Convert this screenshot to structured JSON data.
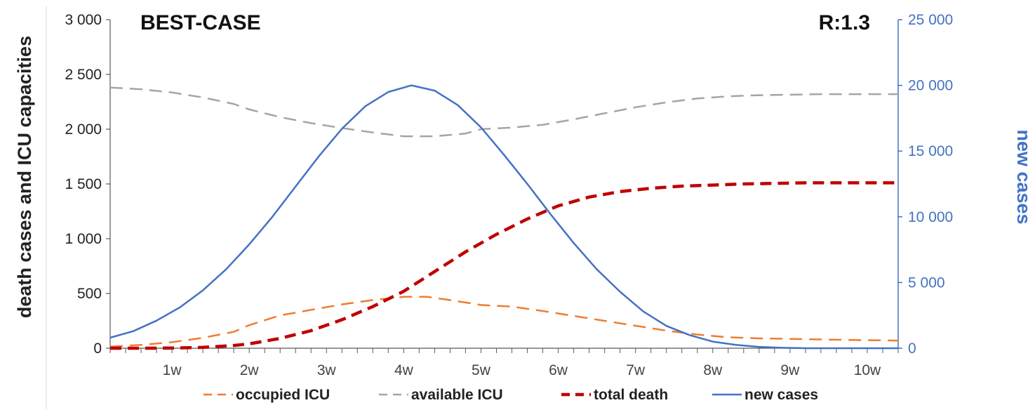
{
  "chart_data": {
    "type": "line",
    "title": "BEST-CASE",
    "annotation": "R:1.3",
    "ylabel": "death cases and ICU capacities",
    "y2label": "new cases",
    "ylim": [
      0,
      3000
    ],
    "y2lim": [
      0,
      25000
    ],
    "yticks": [
      "0",
      "500",
      "1 000",
      "1 500",
      "2 000",
      "2 500",
      "3 000"
    ],
    "y2ticks": [
      "0",
      "5 000",
      "10 000",
      "15 000",
      "20 000",
      "25 000"
    ],
    "xlim": [
      0.2,
      10.4
    ],
    "xticks": [
      {
        "value": 1,
        "label": "1w"
      },
      {
        "value": 2,
        "label": "2w"
      },
      {
        "value": 3,
        "label": "3w"
      },
      {
        "value": 4,
        "label": "4w"
      },
      {
        "value": 5,
        "label": "5w"
      },
      {
        "value": 6,
        "label": "6w"
      },
      {
        "value": 7,
        "label": "7w"
      },
      {
        "value": 8,
        "label": "8w"
      },
      {
        "value": 9,
        "label": "9w"
      },
      {
        "value": 10,
        "label": "10w"
      }
    ],
    "grid": false,
    "legend_position": "bottom",
    "series": [
      {
        "name": "occupied ICU",
        "axis": "left",
        "color": "#ED7D31",
        "style": "dash",
        "x": [
          0.2,
          0.6,
          1.0,
          1.4,
          1.8,
          2.0,
          2.4,
          2.8,
          3.2,
          3.6,
          4.0,
          4.3,
          4.6,
          5.0,
          5.4,
          5.8,
          6.2,
          6.6,
          7.0,
          7.4,
          7.8,
          8.2,
          8.6,
          9.0,
          9.4,
          9.8,
          10.4
        ],
        "y": [
          15,
          30,
          55,
          95,
          150,
          210,
          300,
          350,
          400,
          440,
          470,
          470,
          440,
          395,
          380,
          340,
          295,
          250,
          205,
          160,
          125,
          100,
          90,
          85,
          80,
          75,
          70
        ]
      },
      {
        "name": "available ICU",
        "axis": "left",
        "color": "#A5A5A5",
        "style": "dash",
        "x": [
          0.2,
          0.6,
          1.0,
          1.4,
          1.8,
          2.0,
          2.4,
          2.8,
          3.2,
          3.6,
          4.0,
          4.4,
          4.8,
          5.0,
          5.4,
          5.8,
          6.2,
          6.6,
          7.0,
          7.4,
          7.8,
          8.2,
          8.6,
          9.0,
          9.4,
          9.8,
          10.4
        ],
        "y": [
          2380,
          2365,
          2335,
          2290,
          2230,
          2180,
          2110,
          2055,
          2010,
          1970,
          1935,
          1935,
          1960,
          2000,
          2015,
          2040,
          2090,
          2145,
          2200,
          2245,
          2280,
          2300,
          2310,
          2315,
          2320,
          2320,
          2320
        ]
      },
      {
        "name": "total death",
        "axis": "left",
        "color": "#C00000",
        "style": "dash-thick",
        "x": [
          0.2,
          0.6,
          1.0,
          1.4,
          1.8,
          2.0,
          2.4,
          2.8,
          3.2,
          3.6,
          4.0,
          4.4,
          4.8,
          5.2,
          5.6,
          6.0,
          6.4,
          6.8,
          7.2,
          7.6,
          8.0,
          8.4,
          8.8,
          9.2,
          9.6,
          10.0,
          10.4
        ],
        "y": [
          0,
          0,
          2,
          8,
          25,
          40,
          90,
          160,
          260,
          380,
          520,
          700,
          880,
          1040,
          1180,
          1300,
          1380,
          1430,
          1460,
          1480,
          1490,
          1500,
          1505,
          1510,
          1510,
          1510,
          1510
        ]
      },
      {
        "name": "new cases",
        "axis": "right",
        "color": "#4472C4",
        "style": "solid",
        "x": [
          0.2,
          0.5,
          0.8,
          1.1,
          1.4,
          1.7,
          2.0,
          2.3,
          2.6,
          2.9,
          3.2,
          3.5,
          3.8,
          4.1,
          4.4,
          4.7,
          5.0,
          5.3,
          5.6,
          5.9,
          6.2,
          6.5,
          6.8,
          7.1,
          7.4,
          7.7,
          8.0,
          8.3,
          8.6,
          8.9,
          9.2,
          9.5,
          9.8,
          10.1,
          10.4
        ],
        "y": [
          800,
          1300,
          2100,
          3100,
          4400,
          6000,
          7900,
          10000,
          12300,
          14600,
          16700,
          18400,
          19500,
          20000,
          19600,
          18500,
          16800,
          14700,
          12500,
          10200,
          8000,
          6000,
          4300,
          2800,
          1700,
          1000,
          500,
          250,
          100,
          30,
          0,
          0,
          0,
          0,
          0
        ]
      }
    ]
  }
}
